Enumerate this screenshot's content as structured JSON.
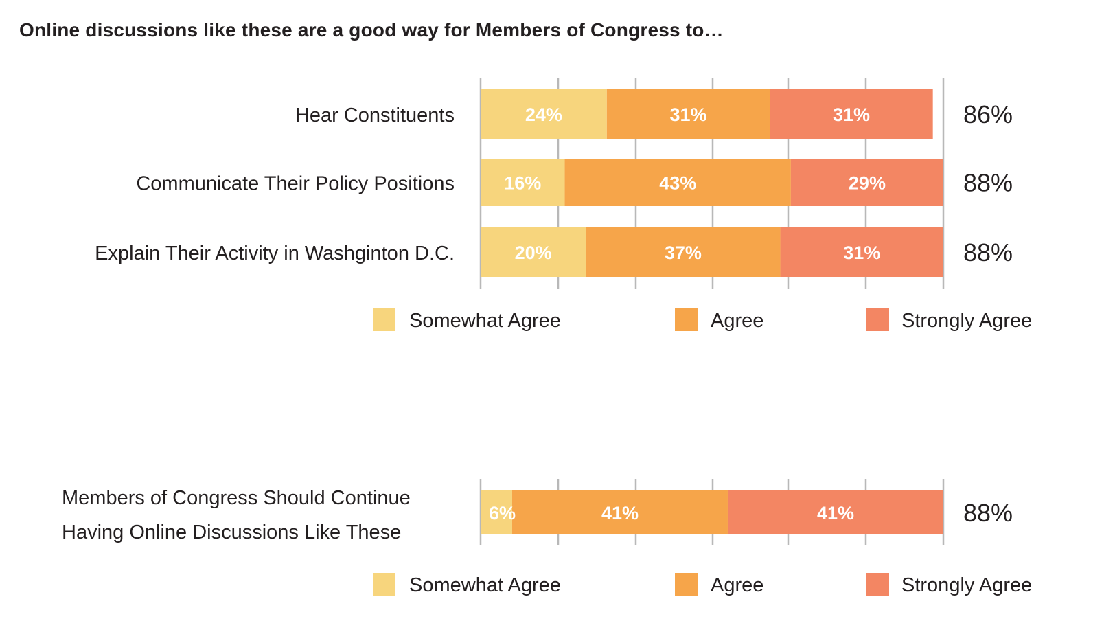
{
  "chart_data": [
    {
      "type": "bar",
      "orientation": "horizontal",
      "stacked": true,
      "title": "Online discussions like these are a good way for Members of Congress to…",
      "categories": [
        "Hear Constituents",
        "Communicate Their Policy Positions",
        "Explain Their Activity in Washginton D.C."
      ],
      "series": [
        {
          "name": "Somewhat Agree",
          "color": "#f7d57d",
          "values": [
            24,
            16,
            20
          ],
          "labels": [
            "24%",
            "16%",
            "20%"
          ]
        },
        {
          "name": "Agree",
          "color": "#f6a54a",
          "values": [
            31,
            43,
            37
          ],
          "labels": [
            "31%",
            "43%",
            "37%"
          ]
        },
        {
          "name": "Strongly Agree",
          "color": "#f38663",
          "values": [
            31,
            29,
            31
          ],
          "labels": [
            "31%",
            "29%",
            "31%"
          ]
        }
      ],
      "totals": [
        "86%",
        "88%",
        "88%"
      ],
      "xlim": [
        0,
        88
      ],
      "gridlines": true,
      "legend_position": "bottom"
    },
    {
      "type": "bar",
      "orientation": "horizontal",
      "stacked": true,
      "categories": [
        "Members of Congress Should Continue Having  Online Discussions Like These"
      ],
      "category_lines": [
        [
          "Members of Congress Should Continue",
          "Having  Online Discussions Like These"
        ]
      ],
      "series": [
        {
          "name": "Somewhat Agree",
          "color": "#f7d57d",
          "values": [
            6
          ],
          "labels": [
            "6%"
          ]
        },
        {
          "name": "Agree",
          "color": "#f6a54a",
          "values": [
            41
          ],
          "labels": [
            "41%"
          ]
        },
        {
          "name": "Strongly Agree",
          "color": "#f38663",
          "values": [
            41
          ],
          "labels": [
            "41%"
          ]
        }
      ],
      "totals": [
        "88%"
      ],
      "xlim": [
        0,
        88
      ],
      "gridlines": true,
      "legend_position": "bottom"
    }
  ]
}
